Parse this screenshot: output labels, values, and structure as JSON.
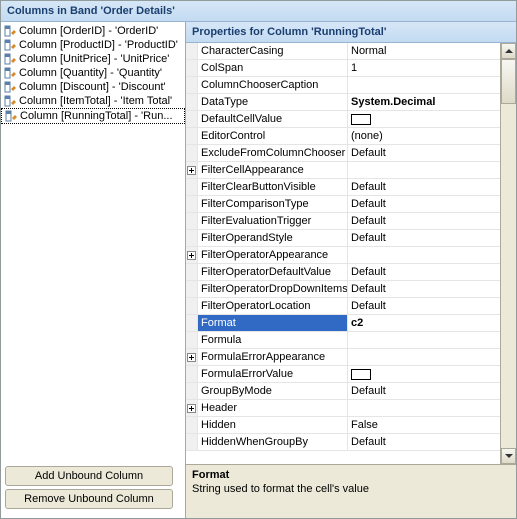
{
  "title": "Columns in Band 'Order Details'",
  "columns": [
    {
      "label": "Column [OrderID] - 'OrderID'",
      "selected": false
    },
    {
      "label": "Column [ProductID] - 'ProductID'",
      "selected": false
    },
    {
      "label": "Column [UnitPrice] - 'UnitPrice'",
      "selected": false
    },
    {
      "label": "Column [Quantity] - 'Quantity'",
      "selected": false
    },
    {
      "label": "Column [Discount] - 'Discount'",
      "selected": false
    },
    {
      "label": "Column [ItemTotal] - 'Item Total'",
      "selected": false
    },
    {
      "label": "Column [RunningTotal] - 'Run...",
      "selected": true
    }
  ],
  "buttons": {
    "add": "Add Unbound Column",
    "remove": "Remove Unbound Column"
  },
  "propsTitle": "Properties for Column 'RunningTotal'",
  "properties": [
    {
      "name": "CharacterCasing",
      "value": "Normal",
      "exp": ""
    },
    {
      "name": "ColSpan",
      "value": "1",
      "exp": ""
    },
    {
      "name": "ColumnChooserCaption",
      "value": "",
      "exp": ""
    },
    {
      "name": "DataType",
      "value": "System.Decimal",
      "exp": "",
      "bold": true
    },
    {
      "name": "DefaultCellValue",
      "value": "",
      "exp": "",
      "swatch": true
    },
    {
      "name": "EditorControl",
      "value": "(none)",
      "exp": ""
    },
    {
      "name": "ExcludeFromColumnChooser",
      "value": "Default",
      "exp": ""
    },
    {
      "name": "FilterCellAppearance",
      "value": "",
      "exp": "+"
    },
    {
      "name": "FilterClearButtonVisible",
      "value": "Default",
      "exp": ""
    },
    {
      "name": "FilterComparisonType",
      "value": "Default",
      "exp": ""
    },
    {
      "name": "FilterEvaluationTrigger",
      "value": "Default",
      "exp": ""
    },
    {
      "name": "FilterOperandStyle",
      "value": "Default",
      "exp": ""
    },
    {
      "name": "FilterOperatorAppearance",
      "value": "",
      "exp": "+"
    },
    {
      "name": "FilterOperatorDefaultValue",
      "value": "Default",
      "exp": ""
    },
    {
      "name": "FilterOperatorDropDownItems",
      "value": "Default",
      "exp": ""
    },
    {
      "name": "FilterOperatorLocation",
      "value": "Default",
      "exp": ""
    },
    {
      "name": "Format",
      "value": "c2",
      "exp": "",
      "selected": true
    },
    {
      "name": "Formula",
      "value": "",
      "exp": ""
    },
    {
      "name": "FormulaErrorAppearance",
      "value": "",
      "exp": "+"
    },
    {
      "name": "FormulaErrorValue",
      "value": "",
      "exp": "",
      "swatch": true
    },
    {
      "name": "GroupByMode",
      "value": "Default",
      "exp": ""
    },
    {
      "name": "Header",
      "value": "",
      "exp": "+"
    },
    {
      "name": "Hidden",
      "value": "False",
      "exp": ""
    },
    {
      "name": "HiddenWhenGroupBy",
      "value": "Default",
      "exp": ""
    }
  ],
  "description": {
    "title": "Format",
    "text": "String used to format the cell's value"
  },
  "icon_colors": {
    "col_icon_fill": "#ffffff",
    "col_icon_stroke": "#5b7fa6",
    "col_icon_accent": "#d98a2b"
  }
}
